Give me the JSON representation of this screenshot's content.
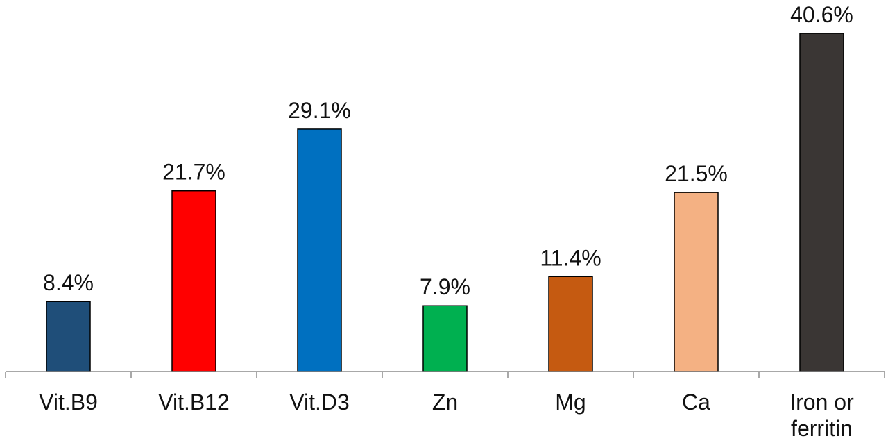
{
  "chart_data": {
    "type": "bar",
    "categories": [
      [
        "Vit.B9"
      ],
      [
        "Vit.B12"
      ],
      [
        "Vit.D3"
      ],
      [
        "Zn"
      ],
      [
        "Mg"
      ],
      [
        "Ca"
      ],
      [
        "Iron or",
        "ferritin"
      ]
    ],
    "values": [
      8.4,
      21.7,
      29.1,
      7.9,
      11.4,
      21.5,
      40.6
    ],
    "data_labels": [
      "8.4%",
      "21.7%",
      "29.1%",
      "7.9%",
      "11.4%",
      "21.5%",
      "40.6%"
    ],
    "colors": [
      "#1f4e79",
      "#ff0000",
      "#0070c0",
      "#00b050",
      "#c55a11",
      "#f4b183",
      "#3a3634"
    ],
    "title": "",
    "xlabel": "",
    "ylabel": "",
    "ylim": [
      0,
      40.6
    ],
    "grid": false,
    "legend": "none"
  }
}
